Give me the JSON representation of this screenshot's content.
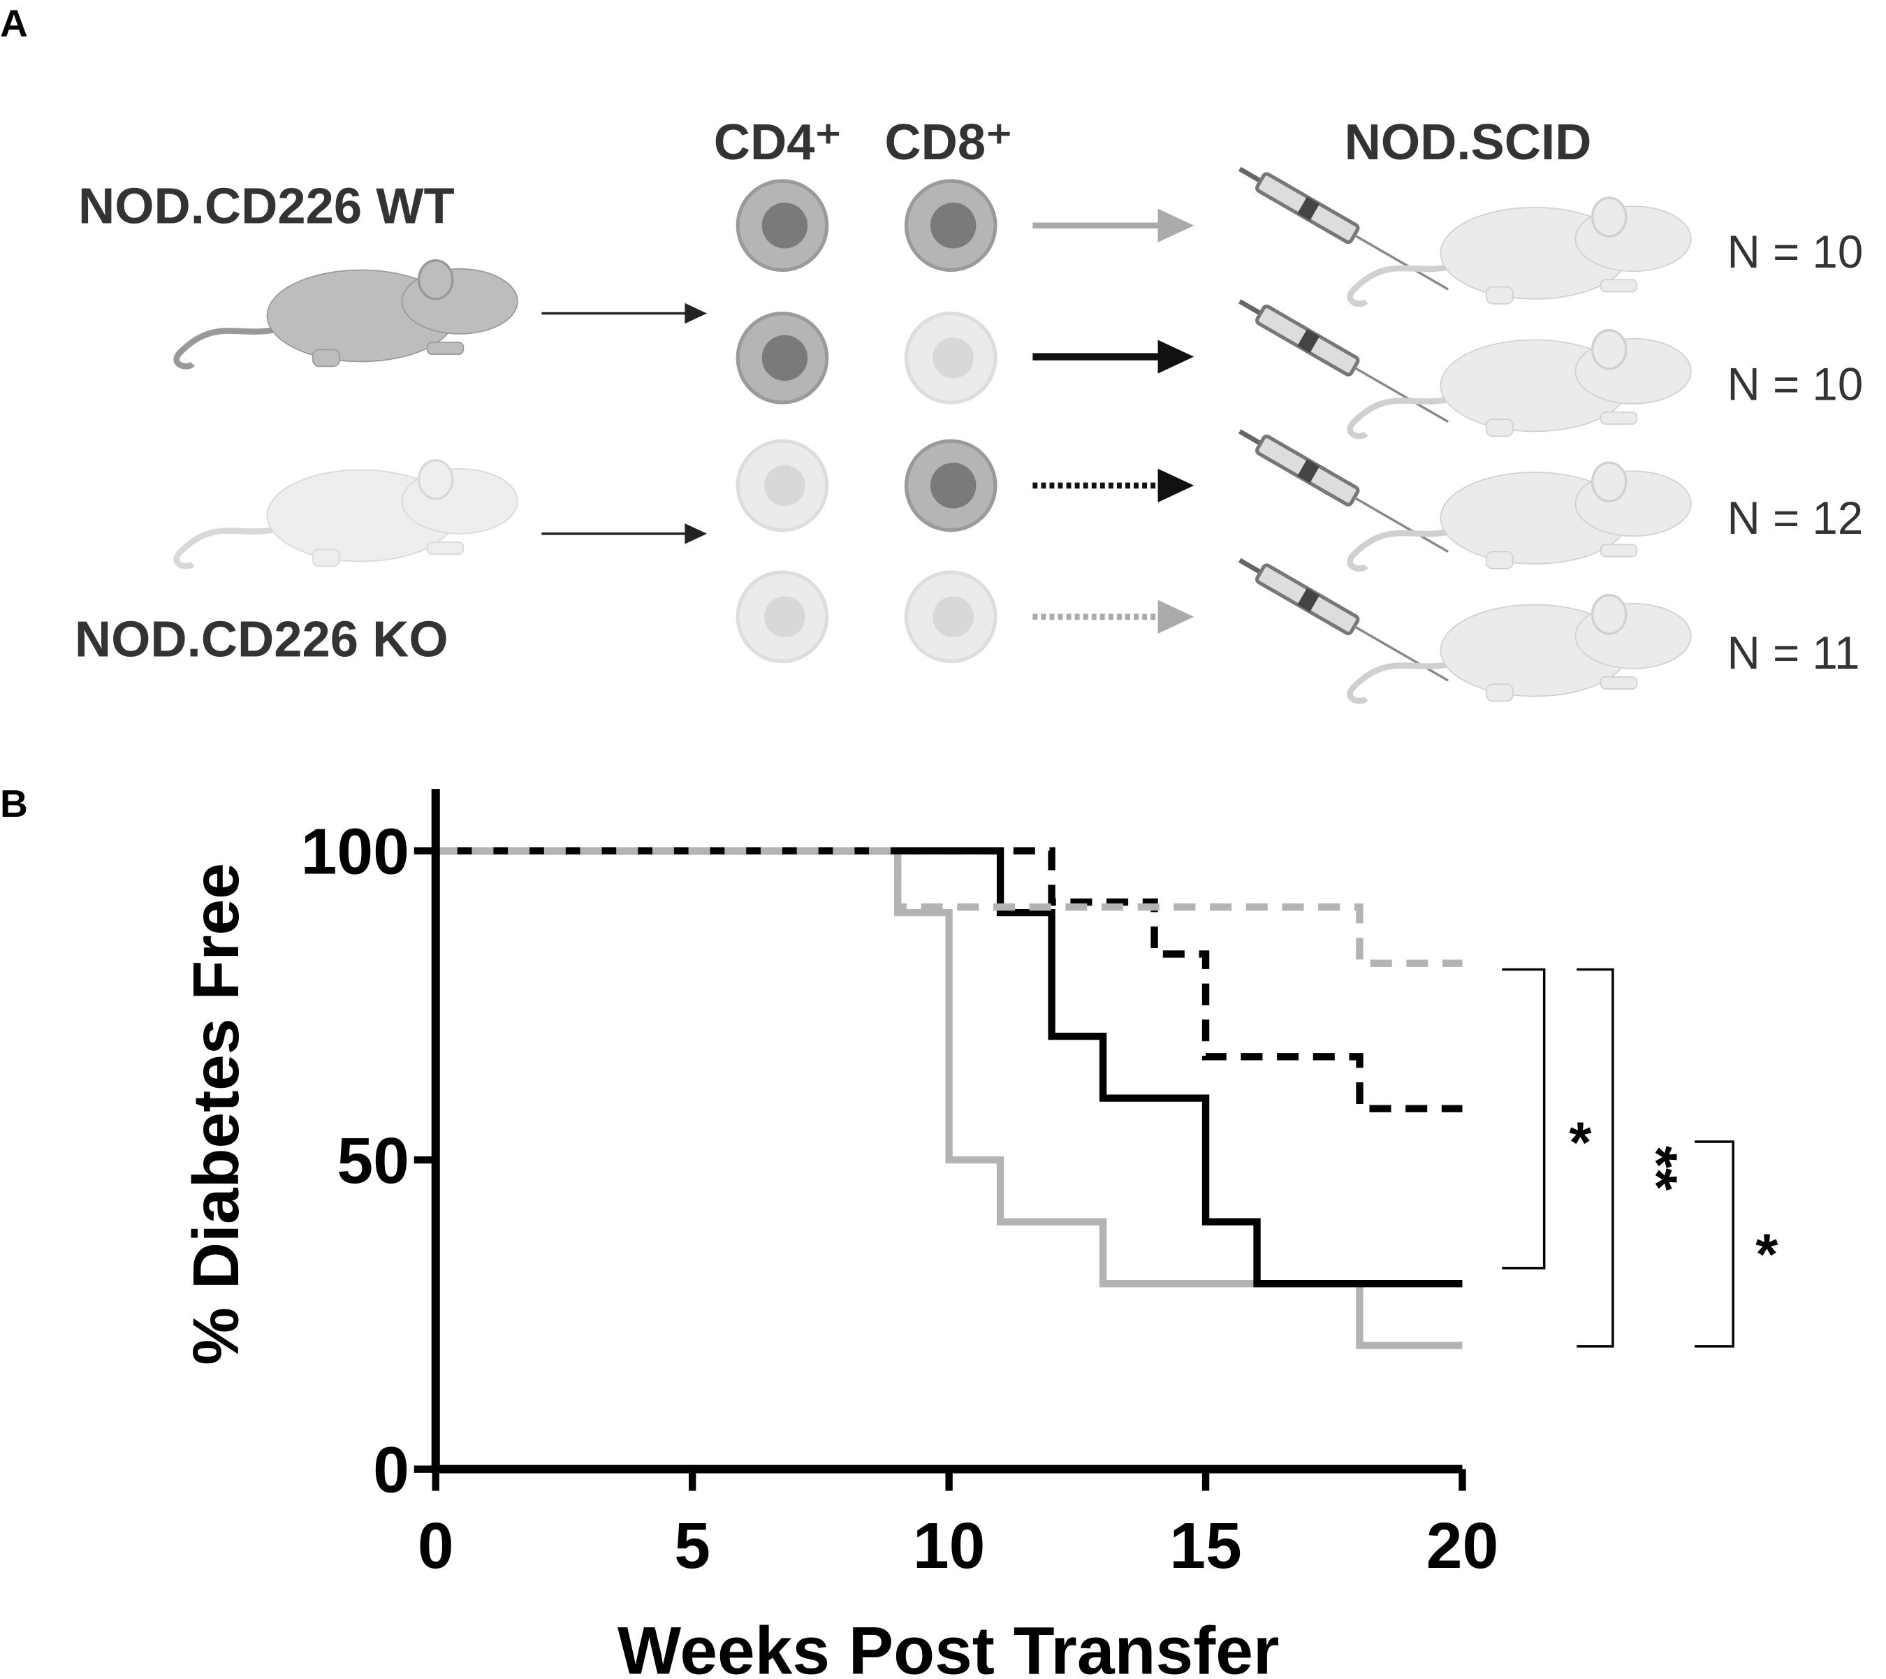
{
  "panel_labels": [
    "A",
    "B"
  ],
  "diagram": {
    "donors": [
      "NOD.CD226 WT",
      "NOD.CD226 KO"
    ],
    "cells": [
      "CD4⁺",
      "CD8⁺"
    ],
    "recipient": "NOD.SCID",
    "groups": [
      "N = 10",
      "N = 10",
      "N = 12",
      "N = 11"
    ]
  },
  "chart_data": {
    "type": "step",
    "xlabel": "Weeks Post Transfer",
    "ylabel": "% Diabetes Free",
    "xlim": [
      0,
      20
    ],
    "ylim": [
      0,
      110
    ],
    "xticks": [
      0,
      5,
      10,
      15,
      20
    ],
    "yticks": [
      0,
      50,
      100
    ],
    "series": [
      {
        "color": "#b3b3b3",
        "dash": "solid",
        "x": [
          0,
          9,
          10,
          11,
          13,
          18,
          20
        ],
        "values": [
          100,
          90,
          50,
          40,
          30,
          20,
          20
        ]
      },
      {
        "color": "#000000",
        "dash": "solid",
        "x": [
          0,
          11,
          12,
          13,
          15,
          16,
          20
        ],
        "values": [
          100,
          90,
          70,
          60,
          40,
          30,
          30
        ]
      },
      {
        "color": "#000000",
        "dash": "dashed",
        "x": [
          0,
          12,
          14,
          15,
          18,
          20
        ],
        "values": [
          100,
          91.7,
          83.3,
          66.7,
          58.3,
          58.3
        ]
      },
      {
        "color": "#b3b3b3",
        "dash": "dashed",
        "x": [
          0,
          9,
          18,
          20
        ],
        "values": [
          100,
          90.9,
          81.8,
          81.8
        ]
      }
    ],
    "annotations": [
      "*",
      "**",
      "*"
    ]
  }
}
